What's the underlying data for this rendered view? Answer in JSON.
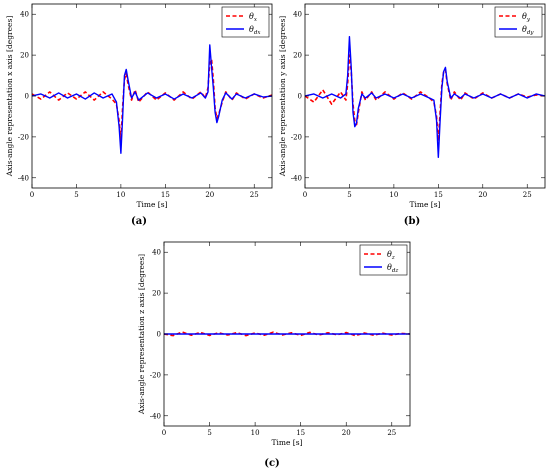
{
  "chart_data": [
    {
      "type": "line",
      "caption": "(a)",
      "xlabel": "Time [s]",
      "ylabel": "Axis-angle representation x axis [degrees]",
      "xlim": [
        0,
        27
      ],
      "ylim": [
        -45,
        45
      ],
      "xticks": [
        0,
        5,
        10,
        15,
        20,
        25
      ],
      "yticks": [
        40,
        20,
        0,
        -20,
        -40
      ],
      "grid": false,
      "legend_position": "top-right",
      "series": [
        {
          "name": "θx",
          "color": "#ff0000",
          "style": "dashed",
          "x": [
            0,
            1,
            2,
            3,
            4,
            5,
            6,
            7,
            8,
            9,
            9.5,
            9.8,
            10,
            10.2,
            10.4,
            10.6,
            10.8,
            11.2,
            11.6,
            12,
            13,
            14,
            15,
            16,
            17,
            18,
            19,
            19.5,
            19.8,
            20,
            20.2,
            20.4,
            20.6,
            20.8,
            21,
            21.4,
            21.8,
            22.5,
            23,
            24,
            25,
            26,
            27
          ],
          "y": [
            1,
            -1.5,
            2,
            -2,
            1.5,
            -1.5,
            2,
            -2,
            2,
            -1.5,
            -4,
            -12,
            -22,
            -5,
            8,
            11,
            6,
            -2,
            3,
            -3,
            2,
            -2,
            1.5,
            -2,
            2,
            -1.5,
            2,
            -1,
            4,
            16,
            18,
            8,
            -6,
            -11,
            -9,
            -3,
            2,
            -2,
            1.5,
            -1.5,
            1,
            -1,
            0.5
          ]
        },
        {
          "name": "θdx",
          "color": "#0000ff",
          "style": "solid",
          "x": [
            0,
            1,
            2,
            3,
            4,
            5,
            6,
            7,
            8,
            9,
            9.5,
            9.8,
            10,
            10.2,
            10.4,
            10.6,
            10.8,
            11.2,
            11.6,
            12,
            13,
            14,
            15,
            16,
            17,
            18,
            19,
            19.5,
            19.8,
            20,
            20.2,
            20.4,
            20.6,
            20.8,
            21,
            21.4,
            21.8,
            22.5,
            23,
            24,
            25,
            26,
            27
          ],
          "y": [
            0,
            1,
            -1,
            1.5,
            -1,
            1,
            -1.5,
            1.5,
            -1,
            1,
            -3,
            -15,
            -28,
            -10,
            10,
            13,
            8,
            -1,
            2,
            -2,
            1.5,
            -1,
            1,
            -1.5,
            1,
            -1,
            1.5,
            -1,
            2,
            25,
            14,
            4,
            -8,
            -13,
            -10,
            -2,
            1.5,
            -1.5,
            1,
            -1,
            1,
            -0.5,
            0
          ]
        }
      ]
    },
    {
      "type": "line",
      "caption": "(b)",
      "xlabel": "Time [s]",
      "ylabel": "Axis-angle representation y axis [degrees]",
      "xlim": [
        0,
        27
      ],
      "ylim": [
        -45,
        45
      ],
      "xticks": [
        0,
        5,
        10,
        15,
        20,
        25
      ],
      "yticks": [
        40,
        20,
        0,
        -20,
        -40
      ],
      "grid": false,
      "legend_position": "top-right",
      "series": [
        {
          "name": "θy",
          "color": "#ff0000",
          "style": "dashed",
          "x": [
            0,
            1,
            2,
            3,
            4,
            4.6,
            4.8,
            5,
            5.2,
            5.4,
            5.6,
            5.8,
            6,
            6.4,
            6.8,
            7.5,
            8,
            9,
            10,
            11,
            12,
            13,
            14,
            14.5,
            14.8,
            15,
            15.2,
            15.4,
            15.6,
            15.8,
            16,
            16.4,
            16.8,
            17.5,
            18,
            19,
            20,
            21,
            22,
            23,
            24,
            25,
            26,
            27
          ],
          "y": [
            0,
            -3,
            3,
            -4,
            2,
            -2,
            6,
            20,
            12,
            -4,
            -12,
            -14,
            -8,
            2,
            -2,
            2,
            -2,
            2,
            -1.5,
            1.5,
            -1.5,
            2,
            -1,
            -3,
            -10,
            -22,
            -8,
            6,
            12,
            13,
            6,
            -2,
            2,
            -2,
            1.5,
            -1.5,
            1.5,
            -1,
            1,
            -1,
            1,
            -0.5,
            0.5,
            0
          ]
        },
        {
          "name": "θdy",
          "color": "#0000ff",
          "style": "solid",
          "x": [
            0,
            1,
            2,
            3,
            4,
            4.6,
            4.8,
            5,
            5.2,
            5.4,
            5.6,
            5.8,
            6,
            6.4,
            6.8,
            7.5,
            8,
            9,
            10,
            11,
            12,
            13,
            14,
            14.5,
            14.8,
            15,
            15.2,
            15.4,
            15.6,
            15.8,
            16,
            16.4,
            16.8,
            17.5,
            18,
            19,
            20,
            21,
            22,
            23,
            24,
            25,
            26,
            27
          ],
          "y": [
            0,
            1,
            -1,
            1,
            -1,
            1,
            10,
            29,
            14,
            -8,
            -15,
            -13,
            -6,
            1,
            -1,
            1.5,
            -1,
            1,
            -1,
            1,
            -1,
            1,
            -1,
            -2,
            -12,
            -30,
            -12,
            4,
            12,
            14,
            7,
            -1,
            1,
            -1,
            1,
            -1,
            1,
            -1,
            1,
            -1,
            1,
            -1,
            1,
            0
          ]
        }
      ]
    },
    {
      "type": "line",
      "caption": "(c)",
      "xlabel": "Time [s]",
      "ylabel": "Axis-angle representation z axis [degrees]",
      "xlim": [
        0,
        27
      ],
      "ylim": [
        -45,
        45
      ],
      "xticks": [
        0,
        5,
        10,
        15,
        20,
        25
      ],
      "yticks": [
        40,
        20,
        0,
        -20,
        -40
      ],
      "grid": false,
      "legend_position": "top-right",
      "series": [
        {
          "name": "θz",
          "color": "#ff0000",
          "style": "dashed",
          "x": [
            0,
            1,
            2,
            3,
            4,
            5,
            6,
            7,
            8,
            9,
            10,
            11,
            12,
            13,
            14,
            15,
            16,
            17,
            18,
            19,
            20,
            21,
            22,
            23,
            24,
            25,
            26,
            27
          ],
          "y": [
            0,
            -0.8,
            1,
            -0.6,
            0.8,
            -0.7,
            0.6,
            -0.5,
            0.7,
            -0.8,
            0.5,
            -0.6,
            0.9,
            -0.5,
            0.6,
            -0.7,
            0.8,
            -0.5,
            0.6,
            -0.4,
            0.7,
            -0.8,
            0.5,
            -0.6,
            0.4,
            -0.5,
            0.3,
            0
          ]
        },
        {
          "name": "θdz",
          "color": "#0000ff",
          "style": "solid",
          "x": [
            0,
            27
          ],
          "y": [
            0,
            0
          ]
        }
      ]
    }
  ]
}
